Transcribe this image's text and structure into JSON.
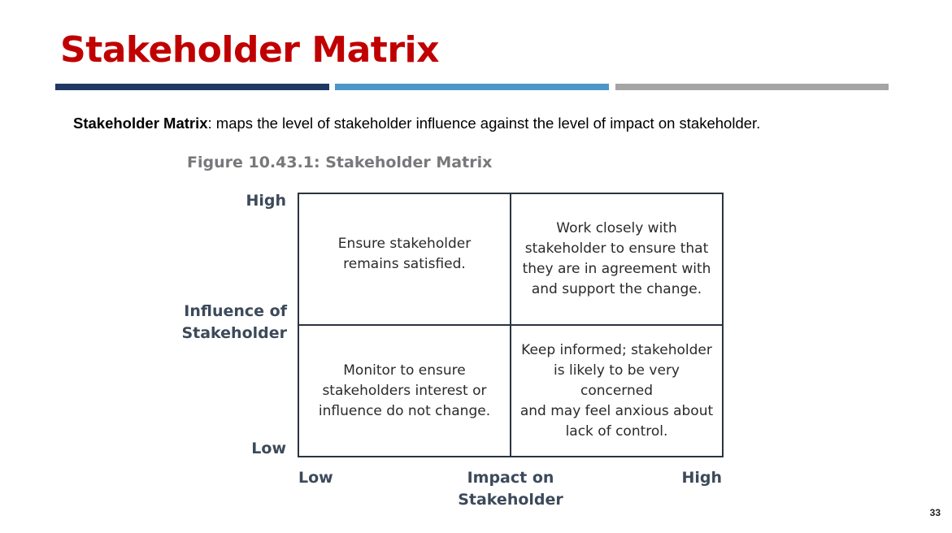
{
  "slide": {
    "title": "Stakeholder Matrix",
    "definition_term": "Stakeholder Matrix",
    "definition_text": ": maps the level of stakeholder influence against the level of impact on stakeholder.",
    "page_number": "33",
    "colors": {
      "title": "#c00000",
      "rule_1": "#1f3864",
      "rule_2": "#4f96c8",
      "rule_3": "#a5a5a5"
    }
  },
  "figure": {
    "caption": "Figure 10.43.1: Stakeholder Matrix",
    "y_axis": {
      "high": "High",
      "title": "Influence of\nStakeholder",
      "low": "Low"
    },
    "x_axis": {
      "low": "Low",
      "title": "Impact on\nStakeholder",
      "high": "High"
    },
    "quadrants": {
      "top_left": "Ensure stakeholder\nremains satisfied.",
      "top_right": "Work closely with\nstakeholder to ensure that\nthey are in agreement with\nand support the change.",
      "bottom_left": "Monitor to ensure\nstakeholders interest or\ninfluence do not change.",
      "bottom_right": "Keep informed; stakeholder\nis likely to be very concerned\nand may feel anxious about\nlack of control."
    }
  }
}
